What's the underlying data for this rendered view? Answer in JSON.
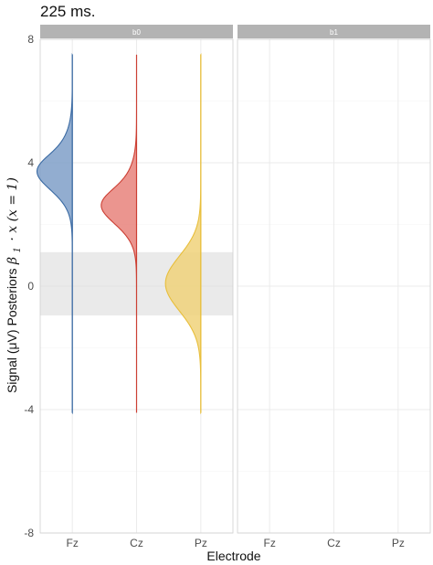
{
  "chart_data": {
    "type": "violin",
    "title": "225 ms.",
    "xlabel": "Electrode",
    "ylabel": {
      "text": "Signal (μV) Posteriors",
      "math_symbol": "β",
      "math_subscript": "1",
      "math_rest": "· x  (x = 1)"
    },
    "ylim": [
      -8,
      8
    ],
    "yticks": [
      -8,
      -4,
      0,
      4,
      8
    ],
    "ytick_labels": [
      "-8",
      "-4",
      "0",
      "4",
      "8"
    ],
    "reference_band": {
      "ymin": -0.95,
      "ymax": 1.1,
      "color": "#d9d9d9"
    },
    "grid": true,
    "panels": [
      {
        "strip": "b0",
        "categories": [
          "Fz",
          "Cz",
          "Pz"
        ],
        "series": [
          {
            "category": "Fz",
            "color": "#3a6aa3",
            "fill": "#7f9fc8",
            "mode": 4.05,
            "sd": 0.75,
            "skew": -1.4,
            "min": -4.1,
            "max": 7.5
          },
          {
            "category": "Cz",
            "color": "#cc3f33",
            "fill": "#e7837b",
            "mode": 2.95,
            "sd": 0.75,
            "skew": -1.4,
            "min": -4.1,
            "max": 7.5
          },
          {
            "category": "Pz",
            "color": "#e8be3a",
            "fill": "#f0d27a",
            "mode": -0.05,
            "sd": 0.9,
            "skew": 0.3,
            "min": -4.1,
            "max": 7.5
          }
        ]
      },
      {
        "strip": "b1",
        "categories": [
          "Fz",
          "Cz",
          "Pz"
        ],
        "series": []
      }
    ]
  }
}
